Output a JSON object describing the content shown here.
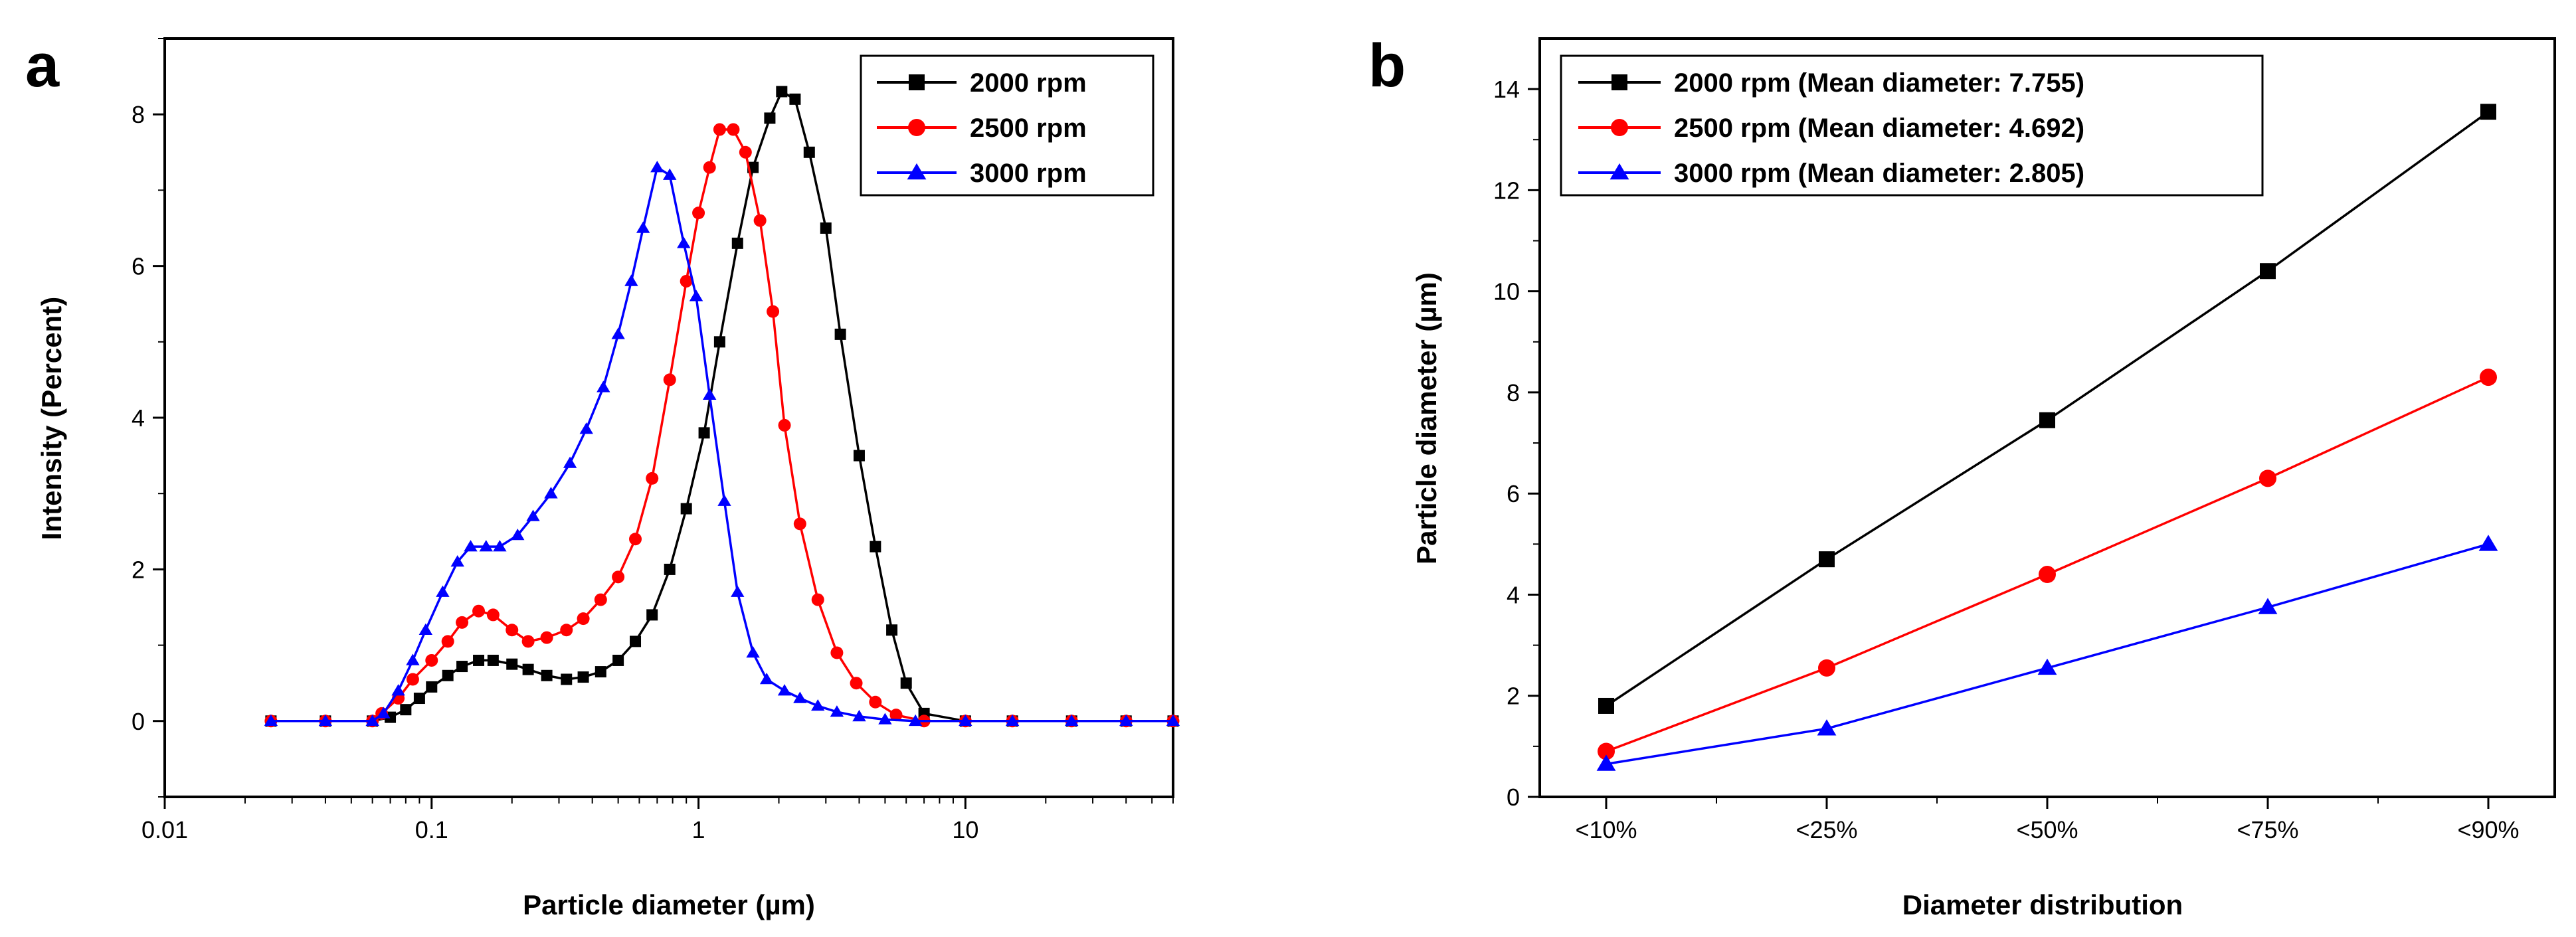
{
  "chart_data": [
    {
      "type": "line",
      "panel_label": "a",
      "title": "",
      "xlabel": "Particle diameter (µm)",
      "ylabel": "Intensity (Percent)",
      "xscale": "log",
      "xlim": [
        0.01,
        60
      ],
      "ylim": [
        -1,
        9
      ],
      "xticks": [
        0.01,
        0.1,
        1,
        10
      ],
      "xtick_labels": [
        "0.01",
        "0.1",
        "1",
        "10"
      ],
      "yticks": [
        0,
        2,
        4,
        6,
        8
      ],
      "ytick_labels": [
        "0",
        "2",
        "4",
        "6",
        "8"
      ],
      "legend_position": "top-right",
      "series": [
        {
          "name": "2000 rpm",
          "color": "#000000",
          "marker": "square",
          "x": [
            0.025,
            0.04,
            0.06,
            0.07,
            0.08,
            0.09,
            0.1,
            0.115,
            0.13,
            0.15,
            0.17,
            0.2,
            0.23,
            0.27,
            0.32,
            0.37,
            0.43,
            0.5,
            0.58,
            0.67,
            0.78,
            0.9,
            1.05,
            1.2,
            1.4,
            1.6,
            1.85,
            2.05,
            2.3,
            2.6,
            3.0,
            3.4,
            4.0,
            4.6,
            5.3,
            6.0,
            7.0,
            10,
            15,
            25,
            40,
            60
          ],
          "values": [
            0,
            0,
            0,
            0.05,
            0.15,
            0.3,
            0.45,
            0.6,
            0.72,
            0.8,
            0.8,
            0.75,
            0.68,
            0.6,
            0.55,
            0.58,
            0.65,
            0.8,
            1.05,
            1.4,
            2.0,
            2.8,
            3.8,
            5.0,
            6.3,
            7.3,
            7.95,
            8.3,
            8.2,
            7.5,
            6.5,
            5.1,
            3.5,
            2.3,
            1.2,
            0.5,
            0.1,
            0,
            0,
            0,
            0,
            0
          ]
        },
        {
          "name": "2500 rpm",
          "color": "#ff0000",
          "marker": "circle",
          "x": [
            0.025,
            0.04,
            0.06,
            0.065,
            0.075,
            0.085,
            0.1,
            0.115,
            0.13,
            0.15,
            0.17,
            0.2,
            0.23,
            0.27,
            0.32,
            0.37,
            0.43,
            0.5,
            0.58,
            0.67,
            0.78,
            0.9,
            1.0,
            1.1,
            1.2,
            1.35,
            1.5,
            1.7,
            1.9,
            2.1,
            2.4,
            2.8,
            3.3,
            3.9,
            4.6,
            5.5,
            7.0,
            10,
            15,
            25,
            40,
            60
          ],
          "values": [
            0,
            0,
            0,
            0.1,
            0.3,
            0.55,
            0.8,
            1.05,
            1.3,
            1.45,
            1.4,
            1.2,
            1.05,
            1.1,
            1.2,
            1.35,
            1.6,
            1.9,
            2.4,
            3.2,
            4.5,
            5.8,
            6.7,
            7.3,
            7.8,
            7.8,
            7.5,
            6.6,
            5.4,
            3.9,
            2.6,
            1.6,
            0.9,
            0.5,
            0.25,
            0.08,
            0,
            0,
            0,
            0,
            0,
            0
          ]
        },
        {
          "name": "3000 rpm",
          "color": "#0000ff",
          "marker": "triangle",
          "x": [
            0.025,
            0.04,
            0.06,
            0.066,
            0.075,
            0.085,
            0.095,
            0.11,
            0.125,
            0.14,
            0.16,
            0.18,
            0.21,
            0.24,
            0.28,
            0.33,
            0.38,
            0.44,
            0.5,
            0.56,
            0.62,
            0.7,
            0.78,
            0.88,
            0.98,
            1.1,
            1.25,
            1.4,
            1.6,
            1.8,
            2.1,
            2.4,
            2.8,
            3.3,
            4.0,
            5.0,
            6.5,
            10,
            15,
            25,
            40,
            60
          ],
          "values": [
            0,
            0,
            0,
            0.1,
            0.4,
            0.8,
            1.2,
            1.7,
            2.1,
            2.3,
            2.3,
            2.3,
            2.45,
            2.7,
            3.0,
            3.4,
            3.85,
            4.4,
            5.1,
            5.8,
            6.5,
            7.3,
            7.2,
            6.3,
            5.6,
            4.3,
            2.9,
            1.7,
            0.9,
            0.55,
            0.4,
            0.3,
            0.2,
            0.12,
            0.06,
            0.02,
            0,
            0,
            0,
            0,
            0,
            0
          ]
        }
      ]
    },
    {
      "type": "line",
      "panel_label": "b",
      "title": "",
      "xlabel": "Diameter distribution",
      "ylabel": "Particle diameter (µm)",
      "categories": [
        "<10%",
        "<25%",
        "<50%",
        "<75%",
        "<90%"
      ],
      "ylim": [
        0,
        15
      ],
      "yticks": [
        0,
        2,
        4,
        6,
        8,
        10,
        12,
        14
      ],
      "ytick_labels": [
        "0",
        "2",
        "4",
        "6",
        "8",
        "10",
        "12",
        "14"
      ],
      "legend_position": "top-left",
      "series": [
        {
          "name": "2000 rpm (Mean diameter: 7.755)",
          "color": "#000000",
          "marker": "square",
          "values": [
            1.8,
            4.7,
            7.45,
            10.4,
            13.55
          ]
        },
        {
          "name": "2500 rpm (Mean diameter: 4.692)",
          "color": "#ff0000",
          "marker": "circle",
          "values": [
            0.9,
            2.55,
            4.4,
            6.3,
            8.3
          ]
        },
        {
          "name": "3000 rpm (Mean diameter: 2.805)",
          "color": "#0000ff",
          "marker": "triangle",
          "values": [
            0.65,
            1.35,
            2.55,
            3.75,
            5.0
          ]
        }
      ]
    }
  ]
}
